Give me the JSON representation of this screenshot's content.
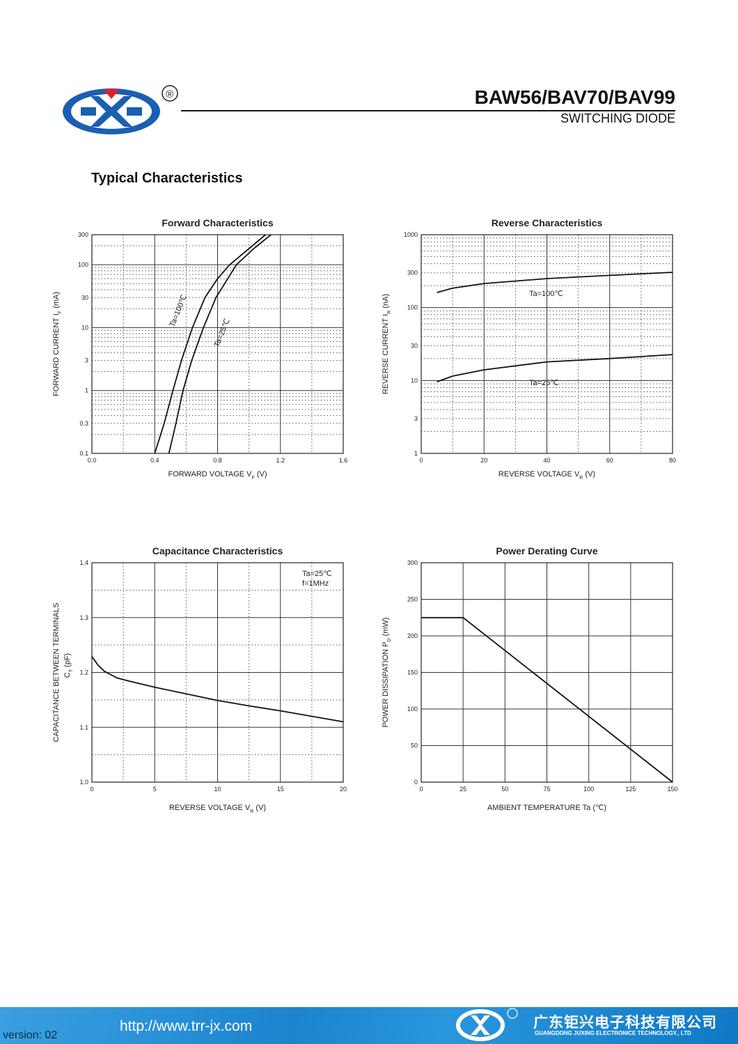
{
  "header": {
    "part_number": "BAW56/BAV70/BAV99",
    "subtitle": "SWITCHING DIODE",
    "logo_text": "JX",
    "registered": "®"
  },
  "section_title": "Typical Characteristics",
  "footer": {
    "version": "version: 02",
    "url": "http://www.trr-jx.com",
    "company_cn": "广东钜兴电子科技有限公司",
    "company_en": "GUANGDONG JUXING ELECTRONICE TECHNOLOGY., LTD"
  },
  "colors": {
    "footer_blue": "#1b84cf",
    "logo_blue": "#1a5fb4",
    "logo_red": "#e02020"
  },
  "chart_data": [
    {
      "type": "line",
      "title": "Forward    Characteristics",
      "xlabel": "FORWARD VOLTAGE    V",
      "xlabel_sub": "F",
      "xlabel_unit": "(V)",
      "ylabel": "FORWARD CURRENT    I",
      "ylabel_sub": "F",
      "ylabel_unit": "(mA)",
      "xlim": [
        0,
        1.6
      ],
      "ylim": [
        0.1,
        300
      ],
      "yscale": "log",
      "grid": true,
      "xticks": [
        "0.0",
        "0.4",
        "0.8",
        "1.2",
        "1.6"
      ],
      "yticks": [
        "0.1",
        "0.3",
        "1",
        "3",
        "10",
        "30",
        "100",
        "300"
      ],
      "series": [
        {
          "name": "Ta=100℃",
          "x": [
            0.4,
            0.46,
            0.516,
            0.57,
            0.64,
            0.72,
            0.8,
            0.877,
            1.0,
            1.106
          ],
          "y": [
            0.1,
            0.3,
            1,
            3,
            10,
            30,
            60,
            100,
            180,
            300
          ]
        },
        {
          "name": "Ta=25℃",
          "x": [
            0.49,
            0.535,
            0.58,
            0.635,
            0.71,
            0.79,
            0.92,
            1.03,
            1.14
          ],
          "y": [
            0.1,
            0.3,
            1,
            3,
            10,
            30,
            100,
            180,
            300
          ]
        }
      ]
    },
    {
      "type": "line",
      "title": "Reverse    Characteristics",
      "xlabel": "REVERSE VOLTAGE    V",
      "xlabel_sub": "R",
      "xlabel_unit": "(V)",
      "ylabel": "REVERSE CURRENT    I",
      "ylabel_sub": "R",
      "ylabel_unit": "(nA)",
      "xlim": [
        0,
        80
      ],
      "ylim": [
        1,
        1000
      ],
      "yscale": "log",
      "grid": true,
      "xticks": [
        "0",
        "20",
        "40",
        "60",
        "80"
      ],
      "yticks": [
        "1",
        "3",
        "10",
        "30",
        "100",
        "300",
        "1000"
      ],
      "series": [
        {
          "name": "Ta=100℃",
          "x": [
            5,
            10,
            20,
            40,
            60,
            80
          ],
          "y": [
            161,
            185,
            214,
            250,
            277,
            305
          ]
        },
        {
          "name": "Ta=25℃",
          "x": [
            5,
            10,
            20,
            40,
            60,
            80
          ],
          "y": [
            9.6,
            11.5,
            14,
            18,
            20,
            22.7
          ]
        }
      ]
    },
    {
      "type": "line",
      "title": "Capacitance Characteristics",
      "xlabel": "REVERSE VOLTAGE    V",
      "xlabel_sub": "R",
      "xlabel_unit": "(V)",
      "ylabel": "CAPACITANCE BETWEEN TERMINALS",
      "ylabel2": "C",
      "ylabel_sub": "T",
      "ylabel_unit": "(pF)",
      "xlim": [
        0,
        20
      ],
      "ylim": [
        1.0,
        1.4
      ],
      "yscale": "linear",
      "grid": true,
      "xticks": [
        "0",
        "5",
        "10",
        "15",
        "20"
      ],
      "yticks": [
        "1.0",
        "1.1",
        "1.2",
        "1.3",
        "1.4"
      ],
      "annotations": [
        "Ta=25℃",
        "f=1MHz"
      ],
      "series": [
        {
          "x": [
            0,
            0.5,
            1,
            2,
            3,
            5,
            7.5,
            10,
            12.5,
            15,
            17.5,
            20
          ],
          "y": [
            1.229,
            1.213,
            1.202,
            1.19,
            1.184,
            1.173,
            1.161,
            1.149,
            1.139,
            1.13,
            1.12,
            1.11
          ]
        }
      ]
    },
    {
      "type": "line",
      "title": "Power Derating Curve",
      "xlabel": "AMBIENT TEMPERATURE    Ta",
      "xlabel_unit": "(℃)",
      "ylabel": "POWER DISSIPATION    P",
      "ylabel_sub": "D",
      "ylabel_unit": "(mW)",
      "xlim": [
        0,
        150
      ],
      "ylim": [
        0,
        300
      ],
      "yscale": "linear",
      "grid": true,
      "xticks": [
        "0",
        "25",
        "50",
        "75",
        "100",
        "125",
        "150"
      ],
      "yticks": [
        "0",
        "50",
        "100",
        "150",
        "200",
        "250",
        "300"
      ],
      "series": [
        {
          "x": [
            0,
            25,
            150
          ],
          "y": [
            225,
            225,
            0
          ]
        }
      ]
    }
  ]
}
